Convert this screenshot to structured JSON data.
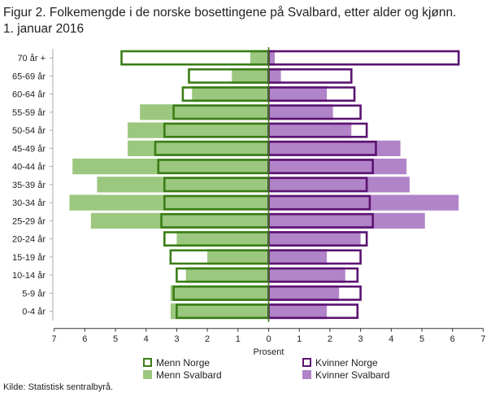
{
  "title_line1": "Figur 2. Folkemengde i de norske bosettingene på Svalbard, etter alder og kjønn.",
  "title_line2": "1. januar 2016",
  "source": "Kilde: Statistisk sentralbyrå.",
  "colors": {
    "menn_norge": "#3a7d16",
    "kvinner_norge": "#5b1371",
    "menn_svalbard": "#9bc77f",
    "kvinner_svalbard": "#b183c8",
    "axis": "#333333"
  },
  "chart_data": {
    "type": "bar",
    "orientation": "horizontal-population-pyramid",
    "xlabel": "Prosent",
    "xlim": [
      -7,
      7
    ],
    "xticks": [
      7,
      6,
      5,
      4,
      3,
      2,
      1,
      0,
      1,
      2,
      3,
      4,
      5,
      6,
      7
    ],
    "categories": [
      "70 år +",
      "65-69 år",
      "60-64 år",
      "55-59 år",
      "50-54 år",
      "45-49 år",
      "40-44 år",
      "35-39 år",
      "30-34 år",
      "25-29 år",
      "20-24 år",
      "15-19 år",
      "10-14 år",
      "5-9 år",
      "0-4 år"
    ],
    "series": [
      {
        "name": "Menn Svalbard",
        "side": "left",
        "style": "fill",
        "color_key": "menn_svalbard",
        "values": [
          0.6,
          1.2,
          2.5,
          4.2,
          4.6,
          4.6,
          6.4,
          5.6,
          6.5,
          5.8,
          3.0,
          2.0,
          2.7,
          3.2,
          3.2
        ]
      },
      {
        "name": "Kvinner Svalbard",
        "side": "right",
        "style": "fill",
        "color_key": "kvinner_svalbard",
        "values": [
          0.2,
          0.4,
          1.9,
          2.1,
          2.7,
          4.3,
          4.5,
          4.6,
          6.2,
          5.1,
          3.0,
          1.9,
          2.5,
          2.3,
          1.9
        ]
      },
      {
        "name": "Menn Norge",
        "side": "left",
        "style": "outline",
        "color_key": "menn_norge",
        "values": [
          4.8,
          2.6,
          2.8,
          3.1,
          3.4,
          3.7,
          3.6,
          3.4,
          3.4,
          3.5,
          3.4,
          3.2,
          3.0,
          3.1,
          3.0
        ]
      },
      {
        "name": "Kvinner Norge",
        "side": "right",
        "style": "outline",
        "color_key": "kvinner_norge",
        "values": [
          6.2,
          2.7,
          2.8,
          3.0,
          3.2,
          3.5,
          3.4,
          3.2,
          3.3,
          3.4,
          3.2,
          3.0,
          2.9,
          3.0,
          2.9
        ]
      }
    ],
    "legend": [
      {
        "label": "Menn Norge",
        "style": "outline",
        "color_key": "menn_norge"
      },
      {
        "label": "Kvinner Norge",
        "style": "outline",
        "color_key": "kvinner_norge"
      },
      {
        "label": "Menn Svalbard",
        "style": "fill",
        "color_key": "menn_svalbard"
      },
      {
        "label": "Kvinner Svalbard",
        "style": "fill",
        "color_key": "kvinner_svalbard"
      }
    ],
    "legend_position": "bottom",
    "grid": false
  }
}
